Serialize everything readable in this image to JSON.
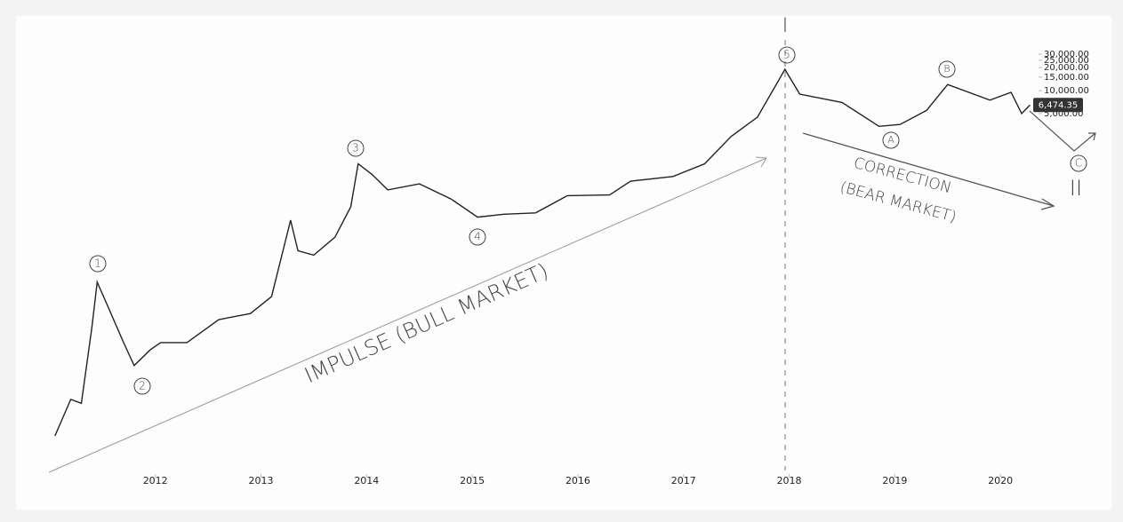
{
  "chart_data": {
    "type": "line",
    "log_scale": true,
    "grid": false,
    "x": [
      2011.05,
      2011.2,
      2011.3,
      2011.4,
      2011.45,
      2011.55,
      2011.7,
      2011.8,
      2011.95,
      2012.05,
      2012.3,
      2012.6,
      2012.9,
      2013.1,
      2013.28,
      2013.35,
      2013.5,
      2013.7,
      2013.85,
      2013.92,
      2014.05,
      2014.2,
      2014.5,
      2014.8,
      2015.05,
      2015.3,
      2015.6,
      2015.9,
      2016.3,
      2016.5,
      2016.9,
      2017.2,
      2017.45,
      2017.7,
      2017.96,
      2018.1,
      2018.5,
      2018.85,
      2019.05,
      2019.3,
      2019.5,
      2019.9,
      2020.1,
      2020.2,
      2020.28
    ],
    "series": [
      {
        "color": "#222222",
        "values": [
          0.3,
          0.9,
          0.8,
          8,
          31,
          15,
          5,
          2.5,
          4,
          5,
          5,
          10,
          12,
          20,
          200,
          80,
          70,
          120,
          300,
          1100,
          800,
          500,
          600,
          380,
          220,
          240,
          250,
          420,
          430,
          650,
          750,
          1100,
          2500,
          4500,
          19000,
          9000,
          7000,
          3400,
          3600,
          5500,
          12000,
          7500,
          9500,
          5000,
          6474.35
        ]
      }
    ],
    "last_price": {
      "value": 6474.35,
      "label": "6,474.35"
    },
    "xlim": [
      2010.9,
      2021.0
    ],
    "xticks": [
      2012,
      2013,
      2014,
      2015,
      2016,
      2017,
      2018,
      2019,
      2020
    ],
    "ylim": [
      0.1,
      90000
    ],
    "yticks": [
      {
        "value": 30000,
        "label": "30,000.00"
      },
      {
        "value": 25000,
        "label": "25,000.00"
      },
      {
        "value": 20000,
        "label": "20,000.00"
      },
      {
        "value": 15000,
        "label": "15,000.00"
      },
      {
        "value": 10000,
        "label": "10,000.00"
      },
      {
        "value": 5000,
        "label": "5,000.00"
      }
    ],
    "annotations": [
      "I",
      "1",
      "2",
      "3",
      "4",
      "5",
      "A",
      "B",
      "C",
      "II",
      "IMPULSE (BULL MARKET)",
      "CORRECTION",
      "(BEAR MARKET)"
    ]
  }
}
